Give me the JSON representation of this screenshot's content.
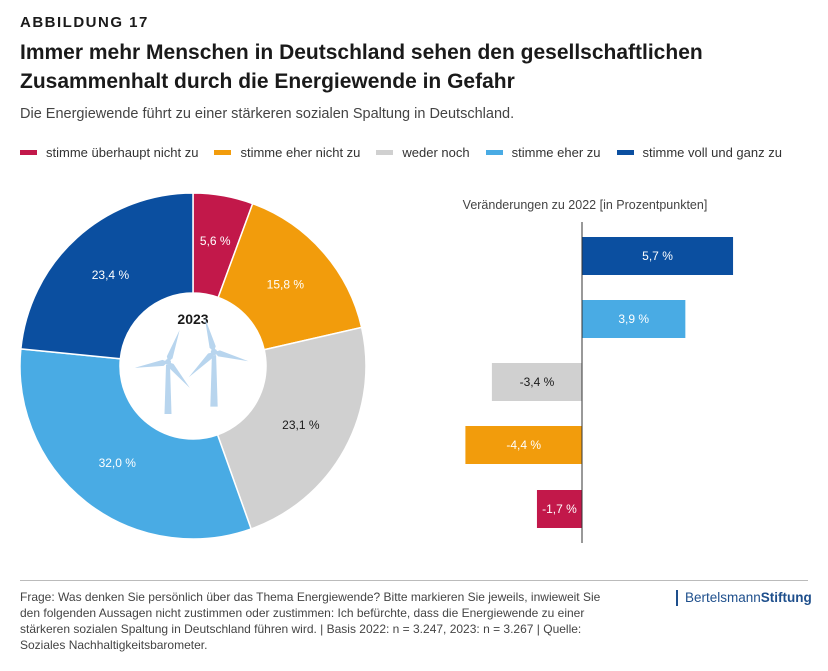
{
  "header": {
    "figure_label": "ABBILDUNG 17",
    "title": "Immer mehr Menschen in Deutschland sehen den gesellschaftlichen Zusammenhalt durch die Energiewende in Gefahr",
    "subtitle": "Die Energiewende führt zu einer stärkeren sozialen Spaltung in Deutschland."
  },
  "legend": [
    {
      "label": "stimme überhaupt nicht zu",
      "color": "#c2184a"
    },
    {
      "label": "stimme eher nicht zu",
      "color": "#f29c0c"
    },
    {
      "label": "weder noch",
      "color": "#d0d0d0"
    },
    {
      "label": "stimme eher zu",
      "color": "#49abe4"
    },
    {
      "label": "stimme voll und ganz zu",
      "color": "#0b4fa0"
    }
  ],
  "chart_data": [
    {
      "type": "pie",
      "center_label": "2023",
      "center_icon": "wind-turbine-icon",
      "slices": [
        {
          "name": "stimme überhaupt nicht zu",
          "value": 5.6,
          "label": "5,6 %",
          "color": "#c2184a"
        },
        {
          "name": "stimme eher nicht zu",
          "value": 15.8,
          "label": "15,8 %",
          "color": "#f29c0c"
        },
        {
          "name": "weder noch",
          "value": 23.1,
          "label": "23,1 %",
          "color": "#d0d0d0"
        },
        {
          "name": "stimme eher zu",
          "value": 32.0,
          "label": "32,0 %",
          "color": "#49abe4"
        },
        {
          "name": "stimme voll und ganz zu",
          "value": 23.4,
          "label": "23,4 %",
          "color": "#0b4fa0"
        }
      ]
    },
    {
      "type": "bar",
      "orientation": "horizontal",
      "title": "Veränderungen zu 2022 [in Prozentpunkten]",
      "bars": [
        {
          "name": "stimme voll und ganz zu",
          "value": 5.7,
          "label": "5,7 %",
          "color": "#0b4fa0"
        },
        {
          "name": "stimme eher zu",
          "value": 3.9,
          "label": "3,9 %",
          "color": "#49abe4"
        },
        {
          "name": "weder noch",
          "value": -3.4,
          "label": "-3,4 %",
          "color": "#d0d0d0"
        },
        {
          "name": "stimme eher nicht zu",
          "value": -4.4,
          "label": "-4,4 %",
          "color": "#f29c0c"
        },
        {
          "name": "stimme überhaupt nicht zu",
          "value": -1.7,
          "label": "-1,7 %",
          "color": "#c2184a"
        }
      ]
    }
  ],
  "footer": {
    "note": "Frage: Was denken Sie persönlich über das Thema Energiewende? Bitte markieren Sie jeweils, inwieweit Sie den folgenden Aussagen nicht zustimmen oder zustimmen: Ich befürchte, dass die Energiewende zu einer stärkeren sozialen Spaltung in Deutschland führen wird. | Basis 2022: n = 3.247, 2023: n = 3.267 | Quelle: Soziales Nachhaltigkeitsbarometer.",
    "logo_part1": "Bertelsmann",
    "logo_part2": "Stiftung"
  }
}
